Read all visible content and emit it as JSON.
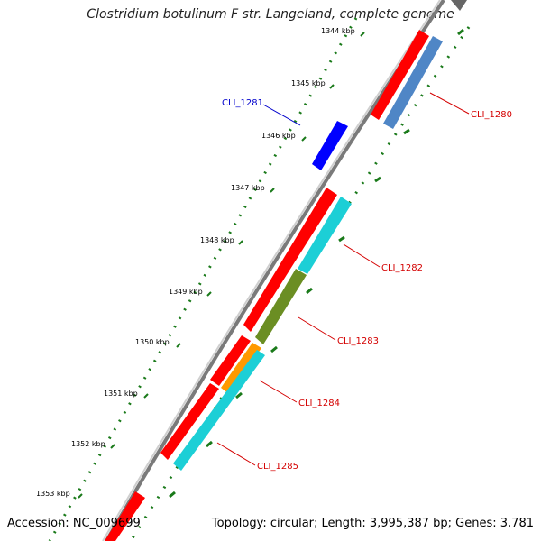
{
  "title": "Clostridium botulinum F str. Langeland, complete genome",
  "footer": {
    "accession": "Accession: NC_009699",
    "stats": "Topology: circular; Length: 3,995,387 bp; Genes: 3,781"
  },
  "ruler_ticks": [
    "1344 kbp",
    "1345 kbp",
    "1346 kbp",
    "1347 kbp",
    "1348 kbp",
    "1349 kbp",
    "1350 kbp",
    "1351 kbp",
    "1352 kbp",
    "1353 kbp"
  ],
  "gene_labels": [
    {
      "text": "CLI_1280",
      "color": "#d40000"
    },
    {
      "text": "CLI_1281",
      "color": "#0000cc"
    },
    {
      "text": "CLI_1282",
      "color": "#d40000"
    },
    {
      "text": "CLI_1283",
      "color": "#d40000"
    },
    {
      "text": "CLI_1284",
      "color": "#d40000"
    },
    {
      "text": "CLI_1285",
      "color": "#d40000"
    }
  ],
  "colors": {
    "backbone": "#888888",
    "ruler_dots": "#1a7a1a",
    "cds_red": "#ff0000",
    "gene_blue": "#0000ff",
    "steelblue": "#4f86c6",
    "cyan": "#1ccfd6",
    "olive": "#6b8e23",
    "orange": "#ff9900"
  }
}
